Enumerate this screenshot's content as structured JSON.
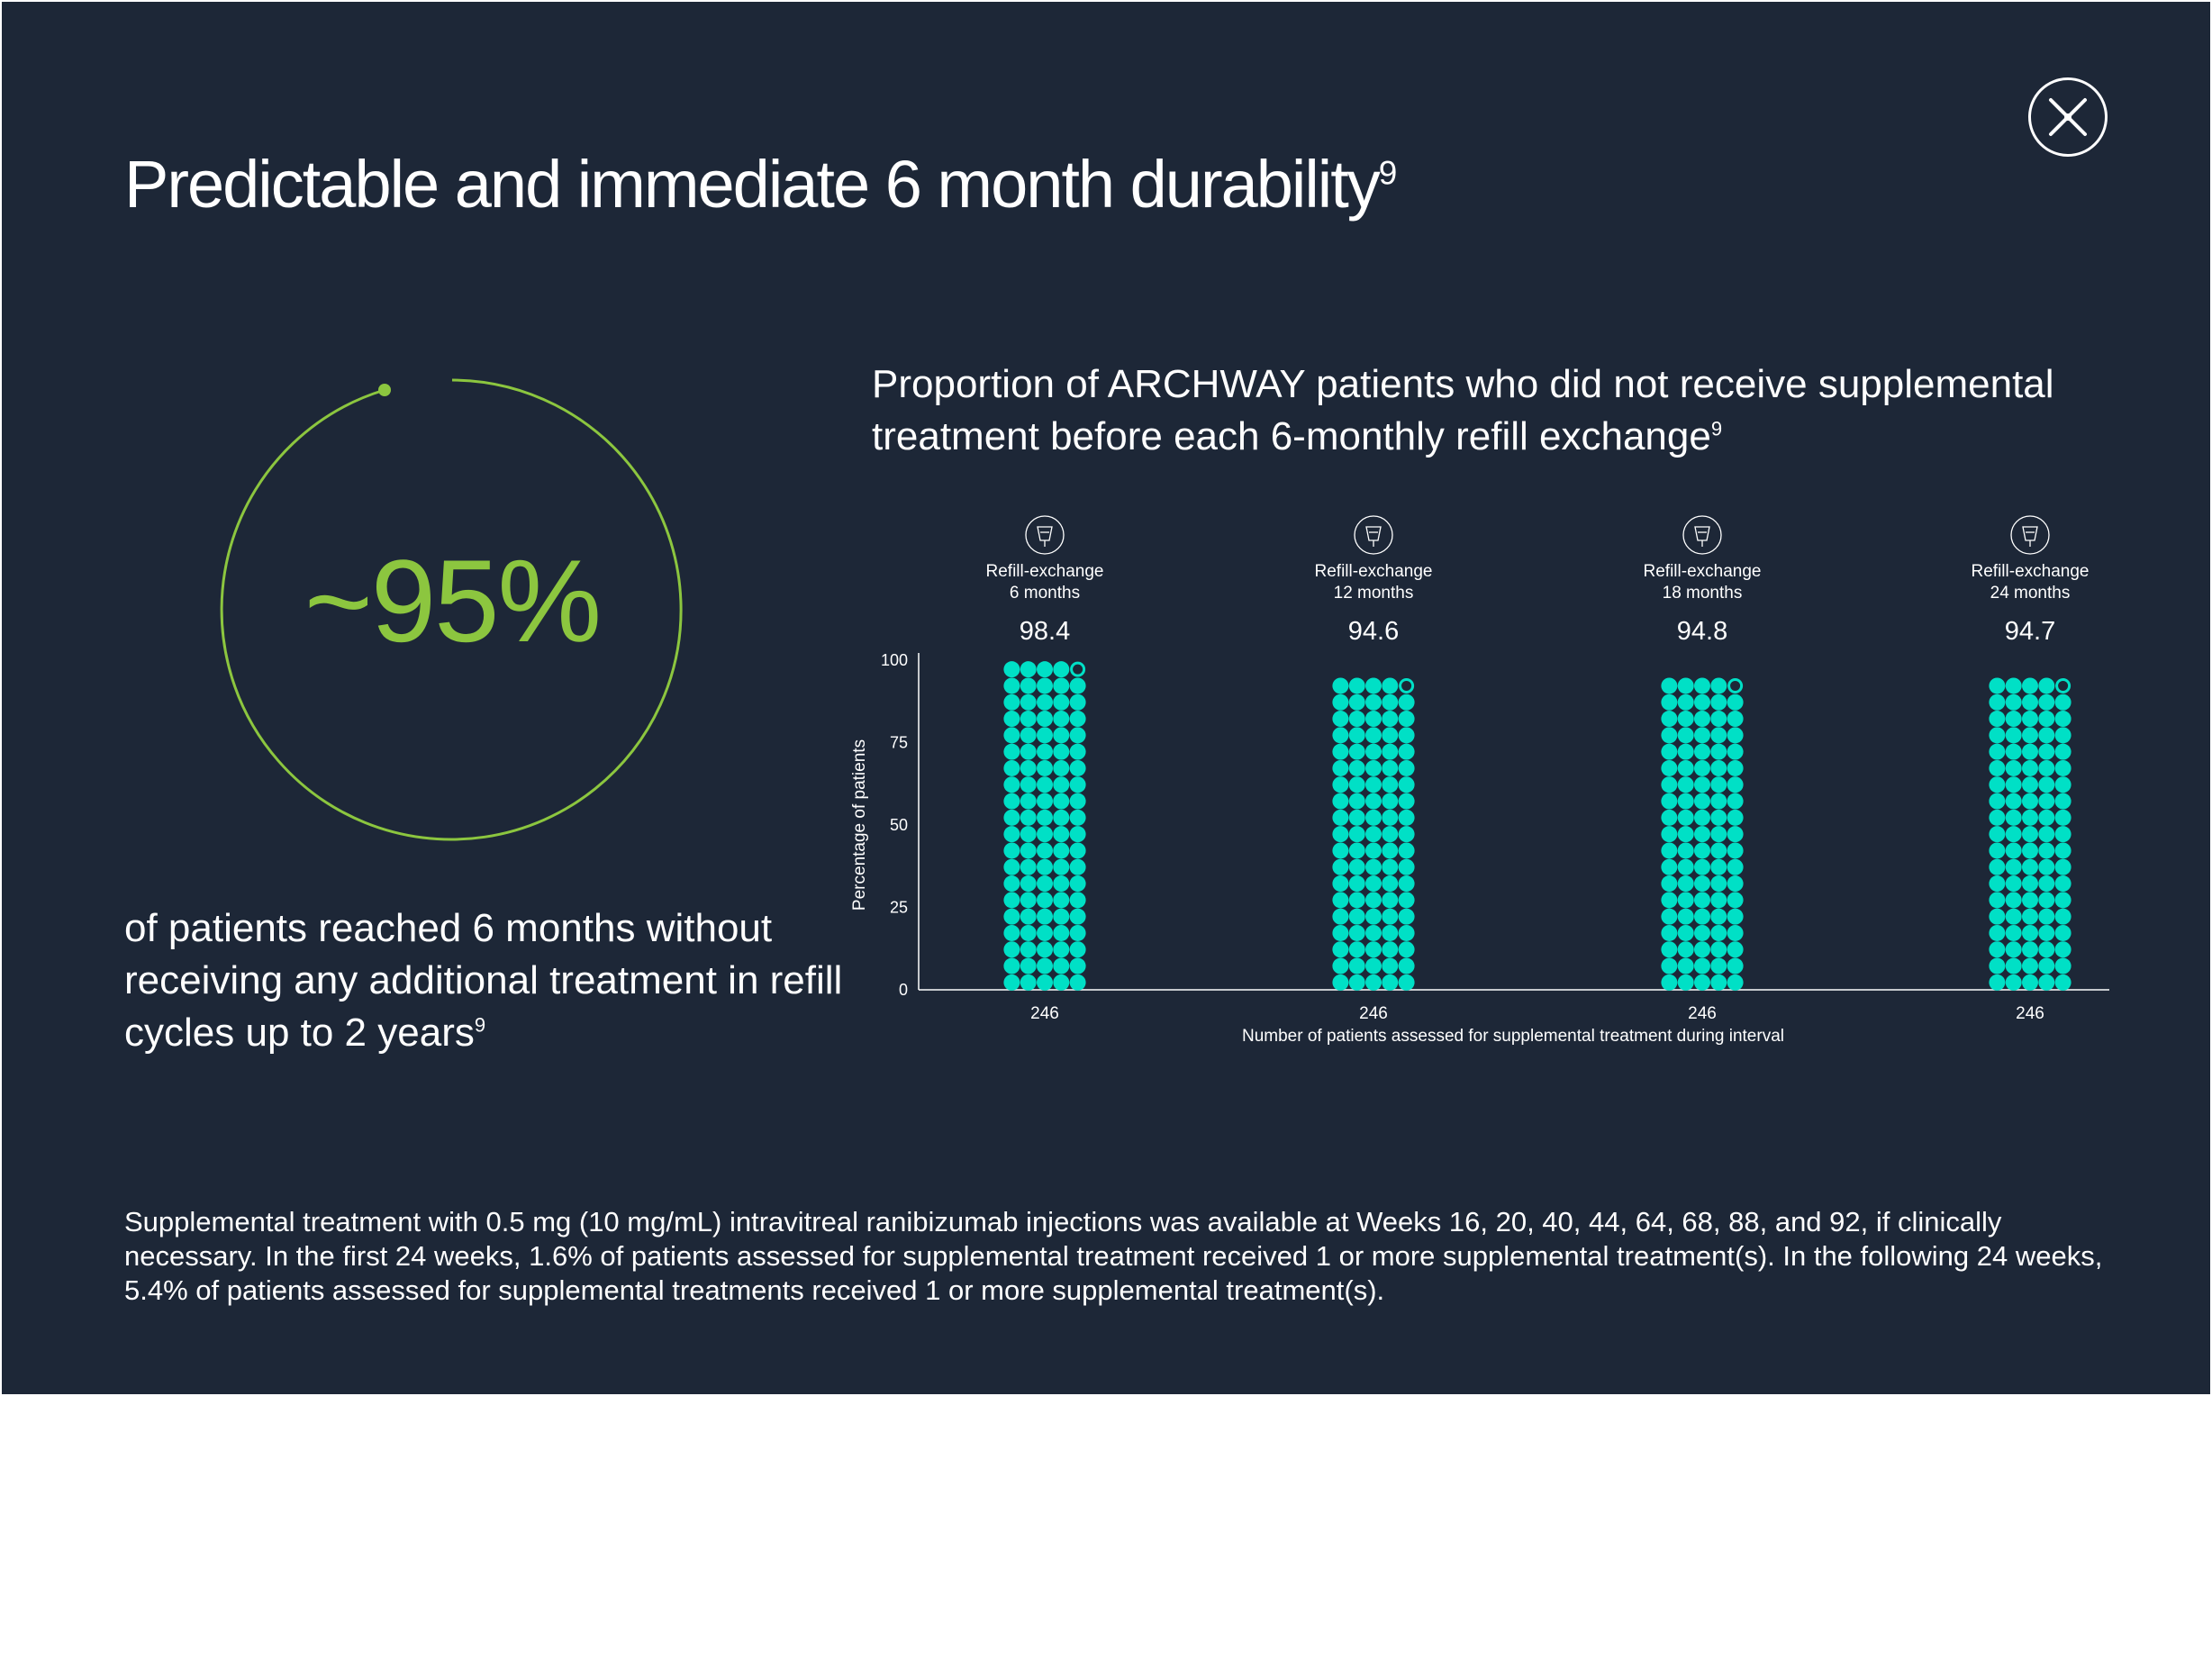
{
  "page": {
    "title": "Predictable and immediate 6 month durability",
    "title_ref": "9",
    "close_icon": "close-x-icon"
  },
  "stat": {
    "value": "~95%",
    "description": "of patients reached 6 months without receiving any additional treatment in refill cycles up to 2 years",
    "description_ref": "9",
    "accent_color": "#8cc63f"
  },
  "chart_title": {
    "text": "Proportion of ARCHWAY patients who did not receive supplemental treatment before each 6-monthly refill exchange",
    "ref": "9"
  },
  "chart_data": {
    "type": "bar",
    "style": "dot-column",
    "categories": [
      "Refill-exchange 6 months",
      "Refill-exchange 12 months",
      "Refill-exchange 18 months",
      "Refill-exchange 24 months"
    ],
    "category_labels": [
      {
        "line1": "Refill-exchange",
        "line2": "6 months"
      },
      {
        "line1": "Refill-exchange",
        "line2": "12 months"
      },
      {
        "line1": "Refill-exchange",
        "line2": "18 months"
      },
      {
        "line1": "Refill-exchange",
        "line2": "24 months"
      }
    ],
    "values": [
      98.4,
      94.6,
      94.8,
      94.7
    ],
    "value_labels": [
      "98.4",
      "94.6",
      "94.8",
      "94.7"
    ],
    "n_labels": [
      "246",
      "246",
      "246",
      "246"
    ],
    "ylabel": "Percentage of patients",
    "xlabel": "Number of patients assessed for supplemental treatment during interval",
    "ylim": [
      0,
      100
    ],
    "yticks": [
      "0",
      "25",
      "50",
      "75",
      "100"
    ],
    "icon": "refill-exchange-icon",
    "dot_color": "#00e0c6",
    "grid": false
  },
  "footnote": "Supplemental treatment with 0.5 mg (10 mg/mL) intravitreal ranibizumab injections was available at Weeks 16, 20, 40, 44, 64, 68, 88, and 92, if clinically necessary. In the first 24 weeks, 1.6% of patients assessed for supplemental treatment received 1 or more supplemental treatment(s). In the following 24 weeks, 5.4% of patients assessed for supplemental treatments received 1 or more supplemental treatment(s)."
}
